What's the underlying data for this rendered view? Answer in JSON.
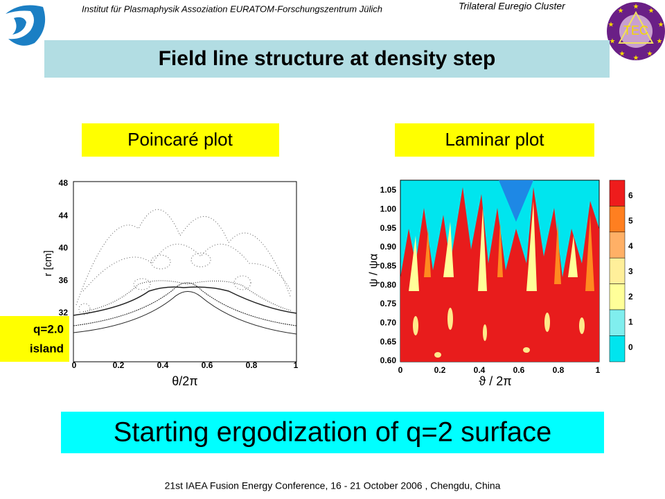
{
  "header": {
    "institute": "Institut für Plasmaphysik Assoziation EURATOM-Forschungszentrum Jülich",
    "cluster": "Trilateral Euregio Cluster",
    "logo_text": "TEC"
  },
  "title": "Field line structure at density step",
  "left_panel": {
    "label": "Poincaré plot",
    "yticks": [
      "48",
      "44",
      "40",
      "36",
      "32"
    ],
    "xticks": [
      "0",
      "0.2",
      "0.4",
      "0.6",
      "0.8",
      "1"
    ],
    "ylabel": "r  [cm]",
    "xlabel": "θ/2π",
    "annotation": [
      "q=2.0",
      "island"
    ]
  },
  "right_panel": {
    "label": "Laminar plot",
    "yticks": [
      "1.05",
      "1.00",
      "0.95",
      "0.90",
      "0.85",
      "0.80",
      "0.75",
      "0.70",
      "0.65",
      "0.60"
    ],
    "xticks": [
      "0",
      "0.2",
      "0.4",
      "0.6",
      "0.8",
      "1"
    ],
    "ylabel": "ψ / ψα",
    "xlabel": "ϑ / 2π",
    "colorbar_ticks": [
      "6",
      "5",
      "4",
      "3",
      "2",
      "1",
      "0"
    ]
  },
  "banner": "Starting ergodization of q=2 surface",
  "footer": "21st IAEA Fusion Energy Conference, 16 - 21 October 2006 , Chengdu, China"
}
